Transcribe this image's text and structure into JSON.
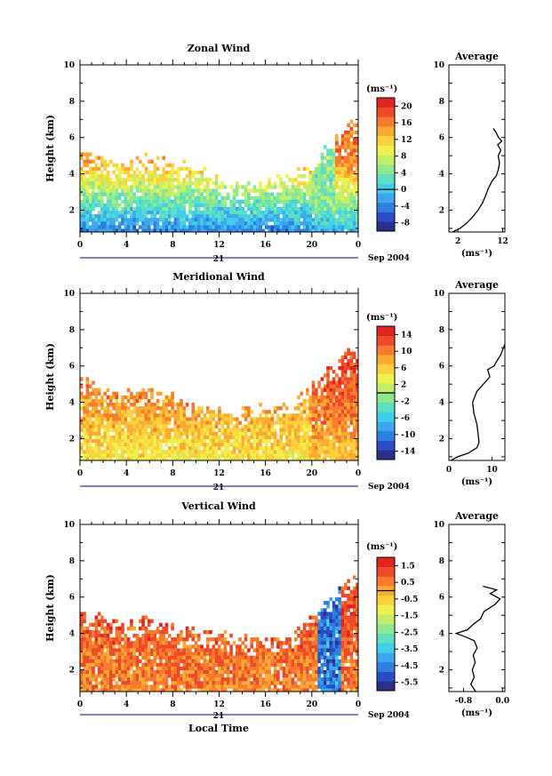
{
  "colors": {
    "palette": [
      "#2c2f88",
      "#2a4cc6",
      "#2f7fe0",
      "#3ea6ec",
      "#40cfe8",
      "#5ee0c0",
      "#8ee890",
      "#c2ee6a",
      "#eef04e",
      "#fcd23c",
      "#fbaa34",
      "#f77a2e",
      "#ee4a2a",
      "#e22420"
    ],
    "axis": "#000000",
    "navy": "#000080"
  },
  "shared": {
    "ylabel": "Height (km)",
    "y_ticks": [
      "2",
      "4",
      "6",
      "8",
      "10"
    ],
    "x_ticks": [
      "0",
      "4",
      "8",
      "12",
      "16",
      "20",
      "0"
    ],
    "date_day": "21",
    "date_label": "Sep 2004",
    "xlabel": "Local Time",
    "unit": "(ms⁻¹)",
    "avg_title": "Average"
  },
  "chart_data": [
    {
      "type": "heatmap",
      "title": "Zonal Wind",
      "xlabel": "",
      "ylabel": "Height (km)",
      "xlim": [
        0,
        24
      ],
      "ylim": [
        0.8,
        10
      ],
      "colorbar": {
        "ticks": [
          "20",
          "16",
          "12",
          "8",
          "4",
          "0",
          "-4",
          "-8"
        ],
        "zero_label": "0",
        "range": [
          -10,
          22
        ]
      },
      "data_top_km": [
        5.3,
        5.1,
        4.9,
        4.7,
        4.6,
        4.8,
        5.0,
        4.7,
        4.4,
        4.5,
        4.2,
        4.0,
        3.7,
        3.5,
        3.4,
        3.5,
        3.6,
        3.7,
        3.9,
        4.2,
        4.7,
        5.4,
        6.0,
        6.8
      ],
      "field": {
        "surface": -4,
        "lapse": 7,
        "cap": 14,
        "late_boost": 2
      },
      "profile": {
        "title": "Average",
        "x_ticks": [
          "2",
          "12"
        ],
        "xlim": [
          0,
          12.5
        ],
        "points": [
          [
            0.8,
            0.8
          ],
          [
            1.0,
            2.5
          ],
          [
            1.3,
            4.0
          ],
          [
            1.6,
            5.2
          ],
          [
            2.0,
            6.5
          ],
          [
            2.4,
            7.5
          ],
          [
            2.8,
            8.2
          ],
          [
            3.2,
            8.8
          ],
          [
            3.6,
            9.6
          ],
          [
            3.9,
            10.6
          ],
          [
            4.2,
            11.0
          ],
          [
            4.6,
            11.3
          ],
          [
            5.0,
            11.0
          ],
          [
            5.3,
            11.6
          ],
          [
            5.6,
            10.9
          ],
          [
            5.8,
            11.8
          ],
          [
            6.0,
            11.1
          ],
          [
            6.3,
            10.5
          ],
          [
            6.5,
            9.9
          ]
        ]
      }
    },
    {
      "type": "heatmap",
      "title": "Meridional Wind",
      "xlabel": "",
      "ylabel": "Height (km)",
      "xlim": [
        0,
        24
      ],
      "ylim": [
        0.8,
        10
      ],
      "colorbar": {
        "ticks": [
          "14",
          "10",
          "6",
          "2",
          "-2",
          "-6",
          "-10",
          "-14"
        ],
        "zero_label": "",
        "range": [
          -16,
          16
        ]
      },
      "data_top_km": [
        5.3,
        5.0,
        4.8,
        4.6,
        4.5,
        4.6,
        4.8,
        4.6,
        4.3,
        4.1,
        3.9,
        3.7,
        3.6,
        3.4,
        3.5,
        3.6,
        3.7,
        3.8,
        4.0,
        4.3,
        4.8,
        5.5,
        6.2,
        7.0
      ],
      "field": {
        "surface": 4,
        "lapse": 0,
        "cap": 10,
        "late_boost": 2
      },
      "profile": {
        "title": "Average",
        "x_ticks": [
          "0",
          "10"
        ],
        "xlim": [
          0,
          13
        ],
        "points": [
          [
            0.8,
            0.5
          ],
          [
            1.0,
            2.0
          ],
          [
            1.2,
            4.5
          ],
          [
            1.5,
            6.5
          ],
          [
            1.8,
            7.0
          ],
          [
            2.2,
            6.8
          ],
          [
            2.8,
            6.5
          ],
          [
            3.4,
            5.8
          ],
          [
            4.0,
            5.5
          ],
          [
            4.6,
            6.5
          ],
          [
            5.0,
            8.0
          ],
          [
            5.4,
            9.5
          ],
          [
            5.8,
            9.0
          ],
          [
            6.0,
            10.5
          ],
          [
            6.3,
            11.2
          ],
          [
            6.6,
            12.0
          ],
          [
            6.9,
            12.5
          ],
          [
            7.2,
            13.0
          ]
        ]
      }
    },
    {
      "type": "heatmap",
      "title": "Vertical Wind",
      "xlabel": "Local Time",
      "ylabel": "Height (km)",
      "xlim": [
        0,
        24
      ],
      "ylim": [
        0.8,
        10
      ],
      "colorbar": {
        "ticks": [
          "1.5",
          "0.5",
          "-0.5",
          "-1.5",
          "-2.5",
          "-3.5",
          "-4.5",
          "-5.5"
        ],
        "zero_label": "",
        "range": [
          -6,
          2
        ]
      },
      "data_top_km": [
        5.2,
        5.0,
        4.8,
        4.6,
        4.5,
        4.7,
        4.8,
        4.6,
        4.4,
        4.3,
        4.1,
        4.0,
        3.9,
        3.8,
        3.7,
        3.6,
        3.7,
        3.8,
        4.0,
        4.3,
        5.0,
        5.6,
        6.3,
        6.9
      ],
      "field": {
        "surface": 0.4,
        "lapse": 0,
        "cap": 1,
        "late_boost": 0
      },
      "profile": {
        "title": "Average",
        "x_ticks": [
          "-0.8",
          "0.0"
        ],
        "xlim": [
          -1.1,
          0.05
        ],
        "points": [
          [
            0.8,
            -0.55
          ],
          [
            1.2,
            -0.65
          ],
          [
            1.6,
            -0.58
          ],
          [
            2.0,
            -0.62
          ],
          [
            2.4,
            -0.56
          ],
          [
            2.8,
            -0.6
          ],
          [
            3.2,
            -0.52
          ],
          [
            3.6,
            -0.58
          ],
          [
            3.8,
            -0.75
          ],
          [
            4.0,
            -0.95
          ],
          [
            4.2,
            -0.72
          ],
          [
            4.5,
            -0.6
          ],
          [
            4.8,
            -0.45
          ],
          [
            5.2,
            -0.38
          ],
          [
            5.6,
            -0.15
          ],
          [
            5.9,
            -0.05
          ],
          [
            6.2,
            -0.25
          ],
          [
            6.4,
            -0.12
          ],
          [
            6.6,
            -0.4
          ]
        ]
      }
    }
  ]
}
